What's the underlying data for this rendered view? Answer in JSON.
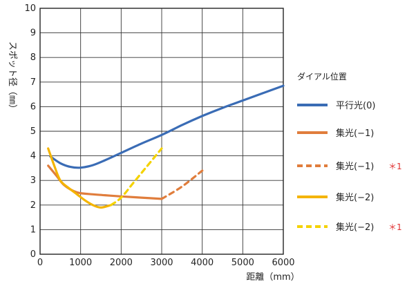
{
  "chart_data": {
    "type": "line",
    "title": "",
    "xlabel": "距離（mm）",
    "ylabel": "スポット径（㎜）",
    "xlim": [
      0,
      6000
    ],
    "ylim": [
      0,
      10
    ],
    "x_ticks": [
      "0",
      "1000",
      "2000",
      "3000",
      "4000",
      "5000",
      "6000"
    ],
    "y_ticks": [
      "0",
      "1",
      "2",
      "3",
      "4",
      "5",
      "6",
      "7",
      "8",
      "9",
      "10"
    ],
    "grid": true,
    "legend_title": "ダイアル位置",
    "legend_position": "right",
    "series": [
      {
        "name": "平行光(0)",
        "color": "#3a6cb5",
        "style": "solid",
        "note": "",
        "points": [
          [
            250,
            3.98
          ],
          [
            500,
            3.7
          ],
          [
            750,
            3.55
          ],
          [
            1000,
            3.52
          ],
          [
            1300,
            3.62
          ],
          [
            1600,
            3.82
          ],
          [
            2000,
            4.12
          ],
          [
            2500,
            4.5
          ],
          [
            3000,
            4.85
          ],
          [
            3500,
            5.25
          ],
          [
            4000,
            5.62
          ],
          [
            4500,
            5.95
          ],
          [
            5000,
            6.25
          ],
          [
            5500,
            6.55
          ],
          [
            6000,
            6.85
          ]
        ]
      },
      {
        "name": "集光(−1)",
        "color": "#e07d3c",
        "style": "solid",
        "note": "",
        "points": [
          [
            200,
            3.6
          ],
          [
            400,
            3.2
          ],
          [
            600,
            2.8
          ],
          [
            900,
            2.52
          ],
          [
            1200,
            2.45
          ],
          [
            1600,
            2.4
          ],
          [
            2000,
            2.35
          ],
          [
            2500,
            2.3
          ],
          [
            3000,
            2.25
          ]
        ]
      },
      {
        "name": "集光(−1)",
        "color": "#e07d3c",
        "style": "dashed",
        "note": "＊1",
        "points": [
          [
            3000,
            2.25
          ],
          [
            3500,
            2.75
          ],
          [
            4000,
            3.4
          ]
        ]
      },
      {
        "name": "集光(−2)",
        "color": "#f4b400",
        "style": "solid",
        "note": "",
        "points": [
          [
            200,
            4.3
          ],
          [
            350,
            3.6
          ],
          [
            500,
            3.0
          ],
          [
            700,
            2.7
          ],
          [
            900,
            2.45
          ],
          [
            1100,
            2.2
          ],
          [
            1300,
            2.0
          ],
          [
            1500,
            1.9
          ],
          [
            1750,
            2.0
          ]
        ]
      },
      {
        "name": "集光(−2)",
        "color": "#f4d200",
        "style": "dashed",
        "note": "＊1",
        "points": [
          [
            1750,
            2.0
          ],
          [
            2000,
            2.3
          ],
          [
            2300,
            2.9
          ],
          [
            2600,
            3.5
          ],
          [
            2900,
            4.1
          ],
          [
            3000,
            4.3
          ]
        ]
      }
    ]
  }
}
